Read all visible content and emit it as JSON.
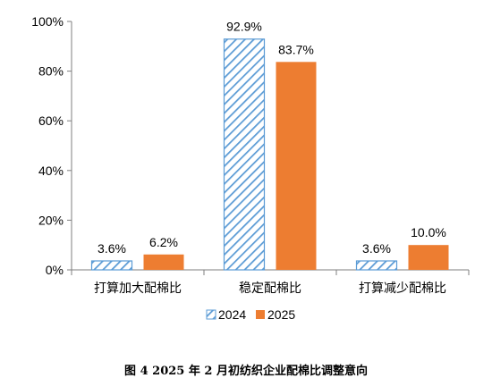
{
  "chart_data": {
    "type": "bar",
    "categories": [
      "打算加大配棉比",
      "稳定配棉比",
      "打算减少配棉比"
    ],
    "series": [
      {
        "name": "2024",
        "values": [
          3.6,
          92.9,
          3.6
        ],
        "labels": [
          "3.6%",
          "92.9%",
          "3.6%"
        ],
        "color": "#5B9BD5",
        "pattern": "diagonal-hatch"
      },
      {
        "name": "2025",
        "values": [
          6.2,
          83.7,
          10.0
        ],
        "labels": [
          "6.2%",
          "83.7%",
          "10.0%"
        ],
        "color": "#ED7D31",
        "pattern": "solid"
      }
    ],
    "ylim": [
      0,
      100
    ],
    "yticks": [
      0,
      20,
      40,
      60,
      80,
      100
    ],
    "ytick_labels": [
      "0%",
      "20%",
      "40%",
      "60%",
      "80%",
      "100%"
    ],
    "grid": false,
    "legend_position": "bottom"
  },
  "caption": "图 4   2025 年 2 月初纺织企业配棉比调整意向"
}
